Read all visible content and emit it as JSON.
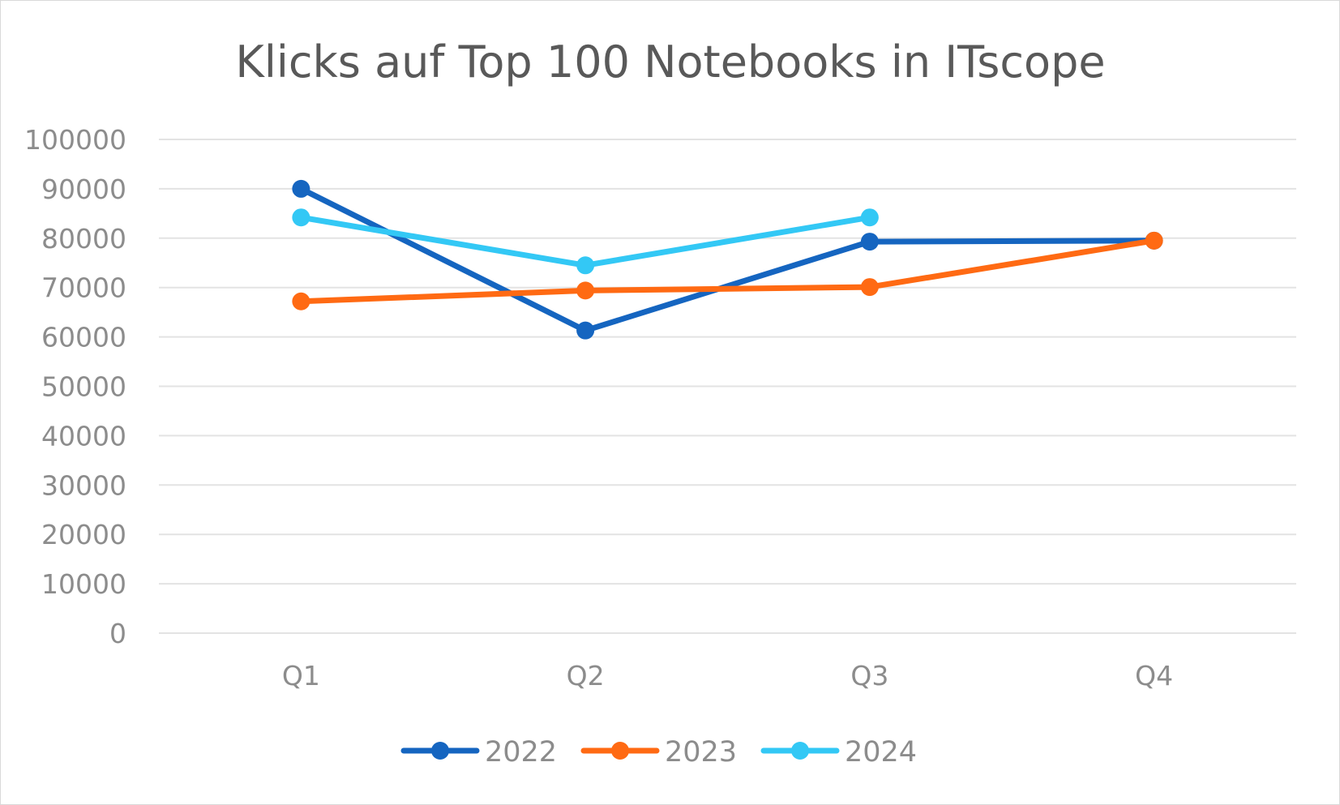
{
  "chart_data": {
    "type": "line",
    "title": "Klicks auf Top 100 Notebooks in ITscope",
    "xlabel": "",
    "ylabel": "",
    "categories": [
      "Q1",
      "Q2",
      "Q3",
      "Q4"
    ],
    "ylim": [
      0,
      100000
    ],
    "yticks": [
      0,
      10000,
      20000,
      30000,
      40000,
      50000,
      60000,
      70000,
      80000,
      90000,
      100000
    ],
    "ytick_labels": [
      "0",
      "10000",
      "20000",
      "30000",
      "40000",
      "50000",
      "60000",
      "70000",
      "80000",
      "90000",
      "100000"
    ],
    "grid": "horizontal",
    "legend_position": "bottom",
    "series": [
      {
        "name": "2022",
        "color": "#1565c0",
        "values": [
          90000,
          61300,
          79300,
          79500
        ]
      },
      {
        "name": "2023",
        "color": "#ff6a13",
        "values": [
          67200,
          69400,
          70100,
          79500
        ]
      },
      {
        "name": "2024",
        "color": "#33c8f5",
        "values": [
          84200,
          74500,
          84200,
          null
        ]
      }
    ]
  }
}
